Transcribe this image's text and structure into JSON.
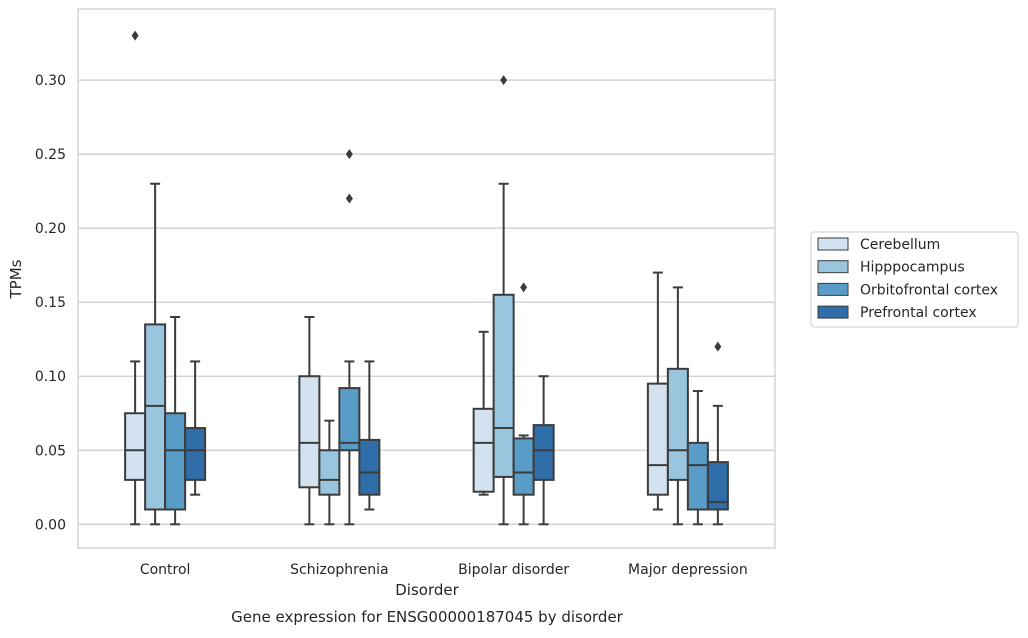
{
  "chart_data": {
    "type": "box",
    "title": "",
    "caption": "Gene expression for ENSG00000187045 by disorder",
    "xlabel": "Disorder",
    "ylabel": "TPMs",
    "ylim": [
      -0.016,
      0.348
    ],
    "yticks": [
      0.0,
      0.05,
      0.1,
      0.15,
      0.2,
      0.25,
      0.3
    ],
    "ytick_labels": [
      "0.00",
      "0.05",
      "0.10",
      "0.15",
      "0.20",
      "0.25",
      "0.30"
    ],
    "categories": [
      "Control",
      "Schizophrenia",
      "Bipolar disorder",
      "Major depression"
    ],
    "grid": "horizontal",
    "legend_position": "right",
    "series": [
      {
        "name": "Cerebellum",
        "color": "#d2e2f1",
        "boxes": [
          {
            "whisker_low": 0.0,
            "q1": 0.03,
            "median": 0.05,
            "q3": 0.075,
            "whisker_high": 0.11,
            "outliers": [
              0.33
            ]
          },
          {
            "whisker_low": 0.0,
            "q1": 0.025,
            "median": 0.055,
            "q3": 0.1,
            "whisker_high": 0.14,
            "outliers": []
          },
          {
            "whisker_low": 0.02,
            "q1": 0.022,
            "median": 0.055,
            "q3": 0.078,
            "whisker_high": 0.13,
            "outliers": []
          },
          {
            "whisker_low": 0.01,
            "q1": 0.02,
            "median": 0.04,
            "q3": 0.095,
            "whisker_high": 0.17,
            "outliers": []
          }
        ]
      },
      {
        "name": "Hipppocampus",
        "color": "#9ac5de",
        "boxes": [
          {
            "whisker_low": 0.0,
            "q1": 0.01,
            "median": 0.08,
            "q3": 0.135,
            "whisker_high": 0.23,
            "outliers": []
          },
          {
            "whisker_low": 0.0,
            "q1": 0.02,
            "median": 0.03,
            "q3": 0.05,
            "whisker_high": 0.07,
            "outliers": []
          },
          {
            "whisker_low": 0.0,
            "q1": 0.032,
            "median": 0.065,
            "q3": 0.155,
            "whisker_high": 0.23,
            "outliers": [
              0.3
            ]
          },
          {
            "whisker_low": 0.0,
            "q1": 0.03,
            "median": 0.05,
            "q3": 0.105,
            "whisker_high": 0.16,
            "outliers": []
          }
        ]
      },
      {
        "name": "Orbitofrontal cortex",
        "color": "#5a9cc8",
        "boxes": [
          {
            "whisker_low": 0.0,
            "q1": 0.01,
            "median": 0.05,
            "q3": 0.075,
            "whisker_high": 0.14,
            "outliers": []
          },
          {
            "whisker_low": 0.0,
            "q1": 0.05,
            "median": 0.055,
            "q3": 0.092,
            "whisker_high": 0.11,
            "outliers": [
              0.22,
              0.25
            ]
          },
          {
            "whisker_low": 0.0,
            "q1": 0.02,
            "median": 0.035,
            "q3": 0.058,
            "whisker_high": 0.06,
            "outliers": [
              0.16
            ]
          },
          {
            "whisker_low": 0.0,
            "q1": 0.01,
            "median": 0.04,
            "q3": 0.055,
            "whisker_high": 0.09,
            "outliers": []
          }
        ]
      },
      {
        "name": "Prefrontal cortex",
        "color": "#2f6ea8",
        "boxes": [
          {
            "whisker_low": 0.02,
            "q1": 0.03,
            "median": 0.05,
            "q3": 0.065,
            "whisker_high": 0.11,
            "outliers": []
          },
          {
            "whisker_low": 0.01,
            "q1": 0.02,
            "median": 0.035,
            "q3": 0.057,
            "whisker_high": 0.11,
            "outliers": []
          },
          {
            "whisker_low": 0.0,
            "q1": 0.03,
            "median": 0.05,
            "q3": 0.067,
            "whisker_high": 0.1,
            "outliers": []
          },
          {
            "whisker_low": 0.0,
            "q1": 0.01,
            "median": 0.015,
            "q3": 0.042,
            "whisker_high": 0.08,
            "outliers": [
              0.12
            ]
          }
        ]
      }
    ]
  }
}
